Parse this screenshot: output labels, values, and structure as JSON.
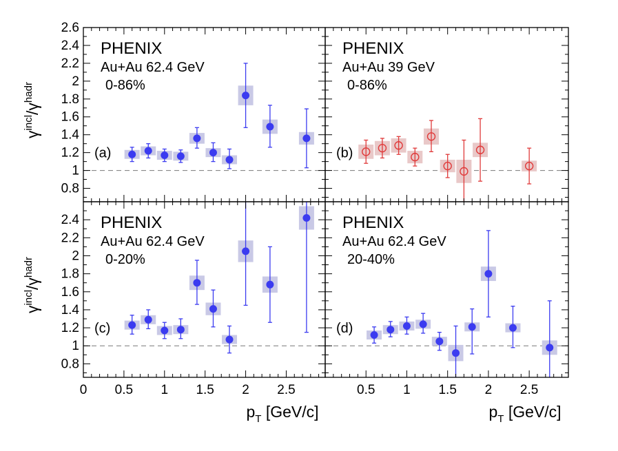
{
  "figure": {
    "ylabel": "γ^incl/γ^hadr",
    "xlabel": "p_T [GeV/c]",
    "colors": {
      "blue_marker": "#3b3bf0",
      "blue_box": "#c9c9e6",
      "red_marker": "#e03a3a",
      "red_box": "#e9c8c8",
      "frame": "#000000",
      "reference_line": "#777777"
    }
  },
  "chart_data": [
    {
      "type": "scatter",
      "panel": "(a)",
      "position": "top-left",
      "experiment": "PHENIX",
      "system": "Au+Au 62.4 GeV",
      "centrality": "0-86%",
      "xlabel": "",
      "ylabel": "γ^incl/γ^hadr",
      "xlim": [
        0,
        2.98
      ],
      "ylim": [
        0.65,
        2.6
      ],
      "yticks": [
        0.8,
        1,
        1.2,
        1.4,
        1.6,
        1.8,
        2,
        2.2,
        2.4,
        2.6
      ],
      "yticklabels": [
        "0.8",
        "1",
        "1.2",
        "1.4",
        "1.6",
        "1.8",
        "2",
        "2.2",
        "2.4",
        "2.6"
      ],
      "reference_line_y": 1,
      "marker": "filled-circle",
      "color": "blue",
      "series": [
        {
          "x": [
            0.6,
            0.8,
            1.0,
            1.2,
            1.4,
            1.6,
            1.8,
            2.0,
            2.3,
            2.75
          ],
          "y": [
            1.18,
            1.22,
            1.17,
            1.16,
            1.36,
            1.2,
            1.12,
            1.84,
            1.49,
            1.36
          ],
          "err_low": [
            0.08,
            0.08,
            0.07,
            0.07,
            0.11,
            0.1,
            0.1,
            0.36,
            0.23,
            0.33
          ],
          "err_high": [
            0.08,
            0.08,
            0.07,
            0.07,
            0.12,
            0.11,
            0.12,
            0.36,
            0.24,
            0.33
          ],
          "sys": [
            0.05,
            0.05,
            0.05,
            0.05,
            0.06,
            0.05,
            0.05,
            0.11,
            0.08,
            0.07
          ]
        }
      ]
    },
    {
      "type": "scatter",
      "panel": "(b)",
      "position": "top-right",
      "experiment": "PHENIX",
      "system": "Au+Au 39 GeV",
      "centrality": "0-86%",
      "xlabel": "",
      "ylabel": "",
      "xlim": [
        0,
        2.98
      ],
      "ylim": [
        0.65,
        2.6
      ],
      "reference_line_y": 1,
      "marker": "open-circle",
      "color": "red",
      "series": [
        {
          "x": [
            0.5,
            0.7,
            0.9,
            1.1,
            1.3,
            1.5,
            1.7,
            1.9,
            2.5
          ],
          "y": [
            1.21,
            1.25,
            1.28,
            1.15,
            1.38,
            1.05,
            0.99,
            1.23,
            1.05
          ],
          "err_low": [
            0.13,
            0.11,
            0.1,
            0.1,
            0.17,
            0.13,
            0.35,
            0.35,
            0.2
          ],
          "err_high": [
            0.13,
            0.11,
            0.1,
            0.1,
            0.18,
            0.13,
            0.35,
            0.35,
            0.2
          ],
          "sys": [
            0.08,
            0.08,
            0.08,
            0.07,
            0.09,
            0.07,
            0.13,
            0.08,
            0.06
          ]
        }
      ]
    },
    {
      "type": "scatter",
      "panel": "(c)",
      "position": "bottom-left",
      "experiment": "PHENIX",
      "system": "Au+Au 62.4 GeV",
      "centrality": "0-20%",
      "xlabel": "p_T [GeV/c]",
      "ylabel": "γ^incl/γ^hadr",
      "xlim": [
        0,
        2.98
      ],
      "ylim": [
        0.65,
        2.6
      ],
      "yticks": [
        0.8,
        1,
        1.2,
        1.4,
        1.6,
        1.8,
        2,
        2.2,
        2.4
      ],
      "yticklabels": [
        "0.8",
        "1",
        "1.2",
        "1.4",
        "1.6",
        "1.8",
        "2",
        "2.2",
        "2.4"
      ],
      "xticks": [
        0,
        0.5,
        1,
        1.5,
        2,
        2.5
      ],
      "xticklabels": [
        "0",
        "0.5",
        "1",
        "1.5",
        "2",
        "2.5"
      ],
      "reference_line_y": 1,
      "marker": "filled-circle",
      "color": "blue",
      "series": [
        {
          "x": [
            0.6,
            0.8,
            1.0,
            1.2,
            1.4,
            1.6,
            1.8,
            2.0,
            2.3,
            2.75
          ],
          "y": [
            1.23,
            1.29,
            1.17,
            1.18,
            1.7,
            1.41,
            1.07,
            2.05,
            1.68,
            2.42
          ],
          "err_low": [
            0.1,
            0.1,
            0.09,
            0.1,
            0.24,
            0.2,
            0.15,
            0.6,
            0.42,
            1.27
          ],
          "err_high": [
            0.11,
            0.11,
            0.09,
            0.12,
            0.25,
            0.21,
            0.15,
            0.65,
            0.42,
            0.6
          ],
          "sys": [
            0.05,
            0.05,
            0.05,
            0.05,
            0.08,
            0.07,
            0.05,
            0.12,
            0.09,
            0.13
          ]
        }
      ]
    },
    {
      "type": "scatter",
      "panel": "(d)",
      "position": "bottom-right",
      "experiment": "PHENIX",
      "system": "Au+Au 62.4 GeV",
      "centrality": "20-40%",
      "xlabel": "p_T [GeV/c]",
      "ylabel": "",
      "xlim": [
        0,
        2.98
      ],
      "ylim": [
        0.65,
        2.6
      ],
      "xticks": [
        0.5,
        1,
        1.5,
        2,
        2.5
      ],
      "xticklabels": [
        "0.5",
        "1",
        "1.5",
        "2",
        "2.5"
      ],
      "reference_line_y": 1,
      "marker": "filled-circle",
      "color": "blue",
      "series": [
        {
          "x": [
            0.6,
            0.8,
            1.0,
            1.2,
            1.4,
            1.6,
            1.8,
            2.0,
            2.3,
            2.75
          ],
          "y": [
            1.12,
            1.18,
            1.22,
            1.24,
            1.05,
            0.92,
            1.21,
            1.8,
            1.2,
            0.98
          ],
          "err_low": [
            0.09,
            0.08,
            0.09,
            0.1,
            0.1,
            0.3,
            0.3,
            0.48,
            0.22,
            0.45
          ],
          "err_high": [
            0.09,
            0.09,
            0.1,
            0.12,
            0.1,
            0.3,
            0.2,
            0.48,
            0.24,
            0.52
          ],
          "sys": [
            0.05,
            0.05,
            0.05,
            0.05,
            0.05,
            0.09,
            0.05,
            0.08,
            0.05,
            0.08
          ]
        }
      ]
    }
  ]
}
